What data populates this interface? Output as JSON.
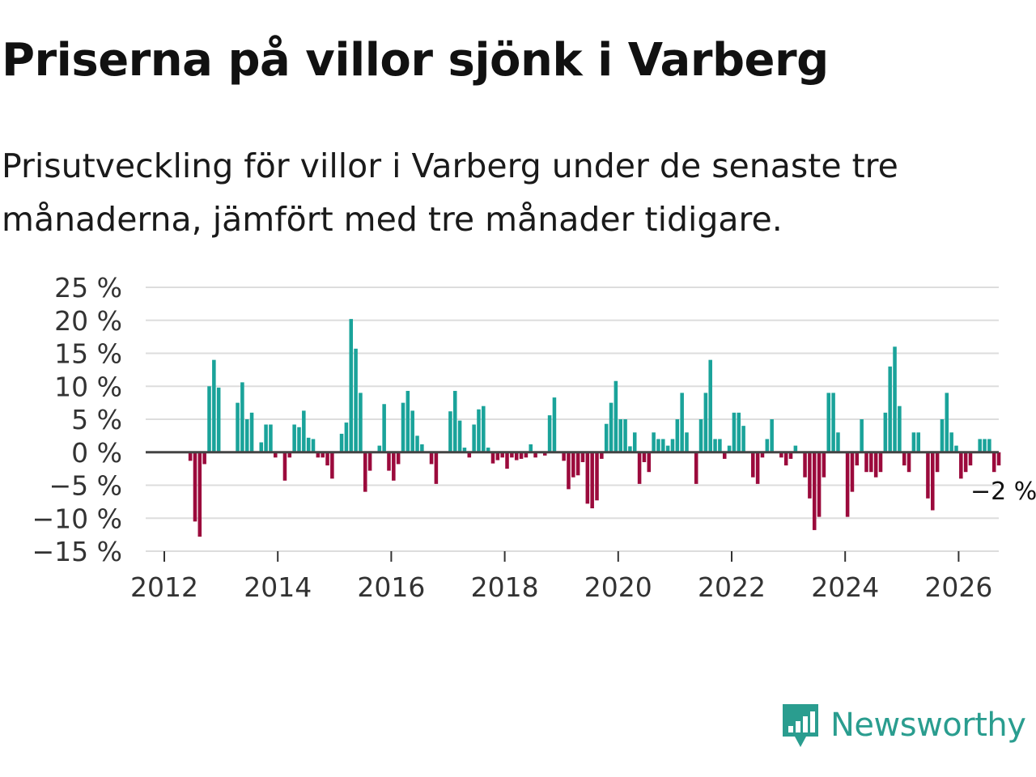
{
  "header": {
    "title": "Priserna på villor sjönk i Varberg",
    "subtitle": "Prisutveckling för villor i Varberg under de senaste tre månaderna, jämfört med tre månader tidigare."
  },
  "brand": {
    "name": "Newsworthy",
    "icon": "newsworthy-logo-icon",
    "color": "#2a9d8f"
  },
  "colors": {
    "positive": "#1aa39a",
    "negative": "#9b0a3c",
    "grid": "#dddddd",
    "zero": "#444444"
  },
  "chart_data": {
    "type": "bar",
    "title": "Priserna på villor sjönk i Varberg",
    "xlabel": "",
    "ylabel": "",
    "ylim": [
      -15,
      25
    ],
    "y_ticks": [
      25,
      20,
      15,
      10,
      5,
      0,
      -5,
      -10,
      -15
    ],
    "y_tick_labels": [
      "25 %",
      "20 %",
      "15 %",
      "10 %",
      "5 %",
      "0 %",
      "−5 %",
      "−10 %",
      "−15 %"
    ],
    "x_ticks": [
      2012,
      2014,
      2016,
      2018,
      2020,
      2022,
      2024,
      2026
    ],
    "x_tick_labels": [
      "2012",
      "2014",
      "2016",
      "2018",
      "2020",
      "2022",
      "2024",
      "2026"
    ],
    "x_start": 2012.0,
    "x_step_months": 1,
    "end_label": "−2 %",
    "values": [
      null,
      null,
      null,
      null,
      null,
      -1.3,
      -10.5,
      -12.8,
      -1.8,
      10.0,
      14.0,
      9.8,
      null,
      null,
      null,
      7.5,
      10.6,
      5.0,
      6.0,
      null,
      1.5,
      4.2,
      4.2,
      -0.8,
      null,
      -4.3,
      -0.8,
      4.2,
      3.8,
      6.3,
      2.2,
      2.0,
      -0.8,
      -0.8,
      -2.0,
      -4.0,
      null,
      2.8,
      4.5,
      20.2,
      15.7,
      9.0,
      -6.0,
      -2.8,
      null,
      1.0,
      7.3,
      -2.8,
      -4.3,
      -1.8,
      7.5,
      9.3,
      6.3,
      2.5,
      1.2,
      null,
      -1.8,
      -4.8,
      null,
      null,
      6.2,
      9.3,
      4.8,
      0.7,
      -0.8,
      4.2,
      6.5,
      7.0,
      0.7,
      -1.7,
      -1.2,
      -0.8,
      -2.5,
      -0.8,
      -1.2,
      -1.0,
      -0.8,
      1.2,
      -0.8,
      null,
      -0.5,
      5.6,
      8.3,
      null,
      -1.3,
      -5.6,
      -3.8,
      -3.5,
      -1.5,
      -7.8,
      -8.5,
      -7.3,
      -1.0,
      4.3,
      7.5,
      10.8,
      5.0,
      5.0,
      0.9,
      3.0,
      -4.8,
      -1.5,
      -3.0,
      3.0,
      2.0,
      2.0,
      1.0,
      2.0,
      5.0,
      9.0,
      3.0,
      null,
      -4.8,
      5.0,
      9.0,
      14.0,
      2.0,
      2.0,
      -1.0,
      1.0,
      6.0,
      6.0,
      4.0,
      null,
      -3.8,
      -4.8,
      -0.8,
      2.0,
      5.0,
      null,
      -0.8,
      -2.0,
      -1.0,
      1.0,
      null,
      -3.8,
      -7.0,
      -11.8,
      -9.8,
      -3.8,
      9.0,
      9.0,
      3.0,
      null,
      -9.8,
      -6.0,
      -2.0,
      5.0,
      -3.0,
      -3.0,
      -3.8,
      -3.0,
      6.0,
      13.0,
      16.0,
      7.0,
      -2.0,
      -3.0,
      3.0,
      3.0,
      null,
      -7.0,
      -8.8,
      -3.0,
      5.0,
      9.0,
      3.0,
      1.0,
      -4.0,
      -3.0,
      -2.0,
      null,
      2.0,
      2.0,
      2.0,
      -3.0,
      -2.0
    ]
  }
}
